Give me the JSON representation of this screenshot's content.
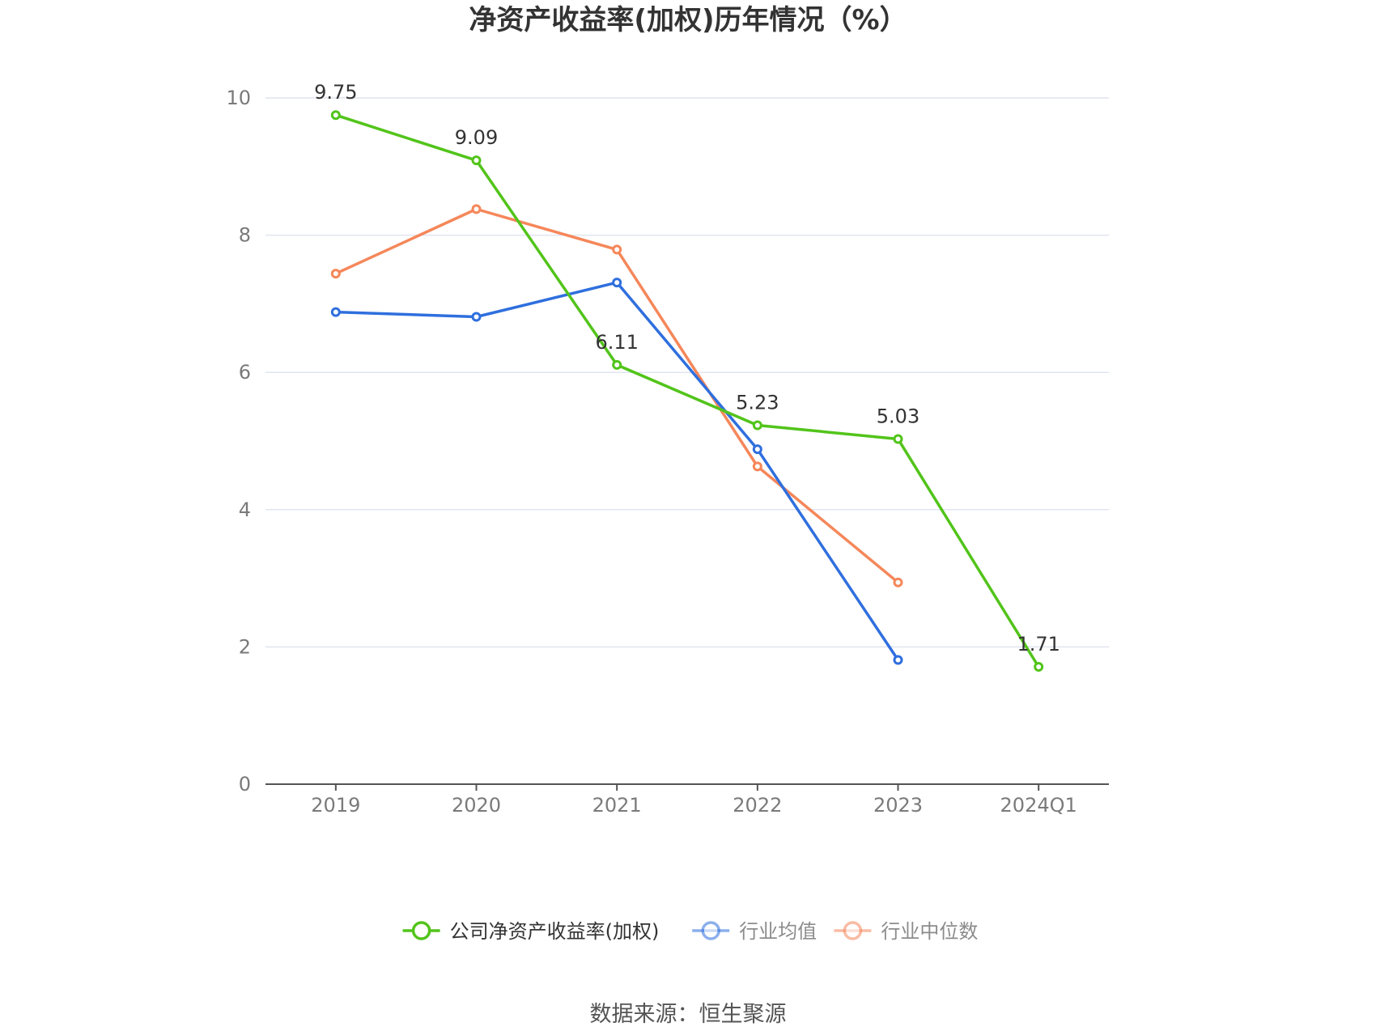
{
  "chart_data": {
    "type": "line",
    "title": "净资产收益率(加权)历年情况（%）",
    "categories": [
      "2019",
      "2020",
      "2021",
      "2022",
      "2023",
      "2024Q1"
    ],
    "ylim": [
      0,
      10
    ],
    "yticks": [
      0,
      2,
      4,
      6,
      8,
      10
    ],
    "grid": true,
    "legend_position": "bottom",
    "series": [
      {
        "name": "公司净资产收益率(加权)",
        "color": "#52c41a",
        "values": [
          9.75,
          9.09,
          6.11,
          5.23,
          5.03,
          1.71
        ],
        "show_labels": true
      },
      {
        "name": "行业均值",
        "color": "#2f6fde",
        "values": [
          6.88,
          6.81,
          7.31,
          4.88,
          1.81,
          null
        ],
        "show_labels": false
      },
      {
        "name": "行业中位数",
        "color": "#f5875a",
        "values": [
          7.44,
          8.38,
          7.79,
          4.63,
          2.94,
          null
        ],
        "show_labels": false
      }
    ],
    "source": "数据来源：恒生聚源"
  }
}
